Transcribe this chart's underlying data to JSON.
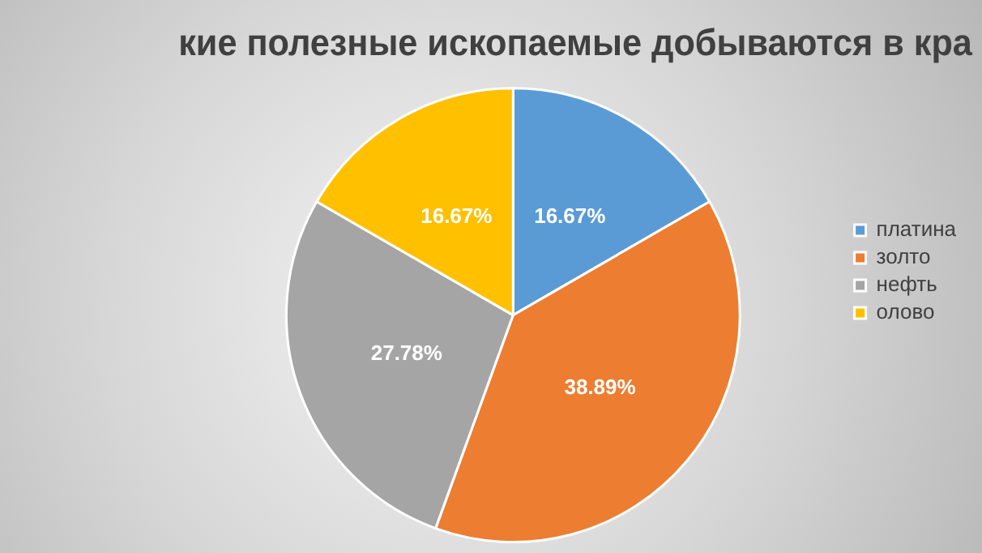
{
  "chart_data": {
    "type": "pie",
    "title": "кие полезные ископаемые добываются в кра",
    "categories": [
      "платина",
      "золто",
      "нефть",
      "олово"
    ],
    "values": [
      16.67,
      38.89,
      27.78,
      16.67
    ],
    "colors": [
      "#5b9bd5",
      "#ed7d31",
      "#a5a5a5",
      "#ffc000"
    ],
    "value_labels": [
      "16.67%",
      "38.89%",
      "27.78%",
      "16.67%"
    ],
    "legend": "right"
  }
}
